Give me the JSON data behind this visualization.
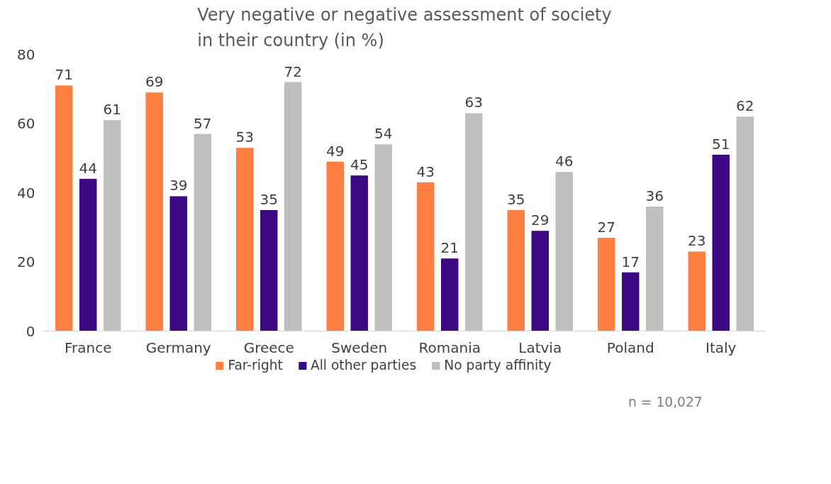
{
  "chart_data": {
    "type": "bar",
    "title": "Very negative or negative assessment of society in their country (in %)",
    "categories": [
      "France",
      "Germany",
      "Greece",
      "Sweden",
      "Romania",
      "Latvia",
      "Poland",
      "Italy"
    ],
    "series": [
      {
        "name": "Far-right",
        "color": "#ff7f41",
        "values": [
          71,
          69,
          53,
          49,
          43,
          35,
          27,
          23
        ]
      },
      {
        "name": "All other parties",
        "color": "#3c0a82",
        "values": [
          44,
          39,
          35,
          45,
          21,
          29,
          17,
          51
        ]
      },
      {
        "name": "No party affinity",
        "color": "#bfbfbf",
        "values": [
          61,
          57,
          72,
          54,
          63,
          46,
          36,
          62
        ]
      }
    ],
    "ylim": [
      0,
      80
    ],
    "yticks": [
      0,
      20,
      40,
      60,
      80
    ],
    "grid": false,
    "legend": "bottom",
    "data_labels": true,
    "annotations": [
      "n = 10,027"
    ]
  }
}
